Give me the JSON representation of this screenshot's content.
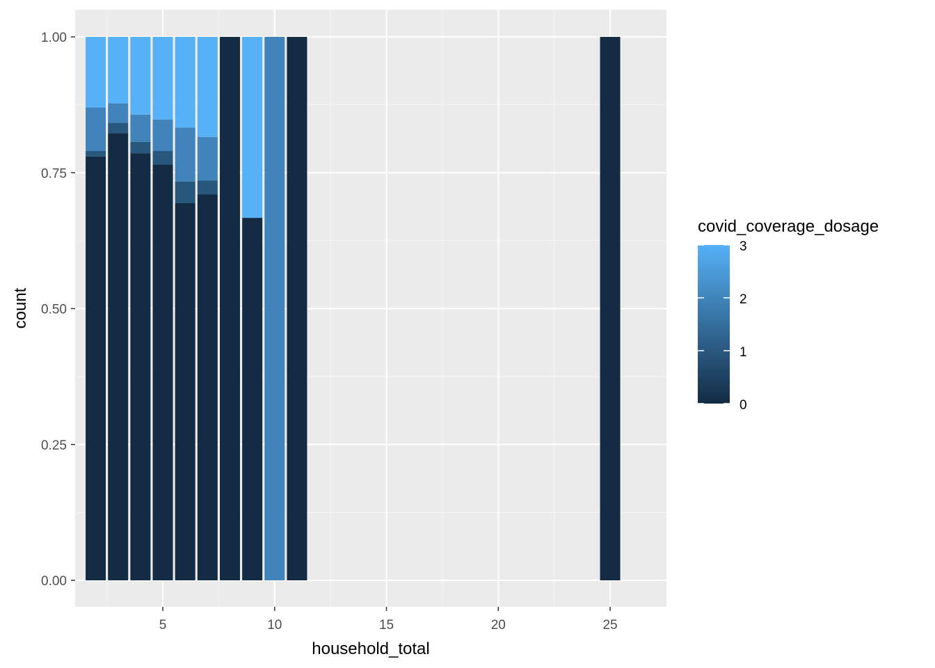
{
  "chart_data": {
    "type": "bar",
    "stacked": true,
    "position": "fill",
    "xlabel": "household_total",
    "ylabel": "count",
    "xlim": [
      1.5,
      25.5
    ],
    "ylim": [
      0,
      1
    ],
    "x_ticks": [
      5,
      10,
      15,
      20,
      25
    ],
    "x_tick_labels": [
      "5",
      "10",
      "15",
      "20",
      "25"
    ],
    "y_ticks": [
      0,
      0.25,
      0.5,
      0.75,
      1.0
    ],
    "y_tick_labels": [
      "0.00",
      "0.25",
      "0.50",
      "0.75",
      "1.00"
    ],
    "grid": true,
    "panel_background": "#ebebeb",
    "legend": {
      "title": "covid_coverage_dosage",
      "placement": "right",
      "type": "colorbar",
      "min": 0,
      "max": 3,
      "breaks": [
        0,
        1,
        2,
        3
      ],
      "break_labels": [
        "0",
        "1",
        "2",
        "3"
      ],
      "low_color": "#132b43",
      "high_color": "#56b1f7"
    },
    "dosage_levels": [
      0,
      1,
      2,
      3
    ],
    "bars": [
      {
        "x": 2,
        "fractions": [
          0.78,
          0.01,
          0.08,
          0.13
        ]
      },
      {
        "x": 3,
        "fractions": [
          0.823,
          0.019,
          0.036,
          0.122
        ]
      },
      {
        "x": 4,
        "fractions": [
          0.786,
          0.021,
          0.05,
          0.143
        ]
      },
      {
        "x": 5,
        "fractions": [
          0.765,
          0.025,
          0.058,
          0.152
        ]
      },
      {
        "x": 6,
        "fractions": [
          0.694,
          0.04,
          0.099,
          0.167
        ]
      },
      {
        "x": 7,
        "fractions": [
          0.71,
          0.026,
          0.08,
          0.184
        ]
      },
      {
        "x": 8,
        "fractions": [
          1.0,
          0,
          0,
          0
        ]
      },
      {
        "x": 9,
        "fractions": [
          0.667,
          0,
          0,
          0.333
        ]
      },
      {
        "x": 10,
        "fractions": [
          0,
          0,
          1.0,
          0
        ]
      },
      {
        "x": 11,
        "fractions": [
          1.0,
          0,
          0,
          0
        ]
      },
      {
        "x": 25,
        "fractions": [
          1.0,
          0,
          0,
          0
        ]
      }
    ]
  }
}
